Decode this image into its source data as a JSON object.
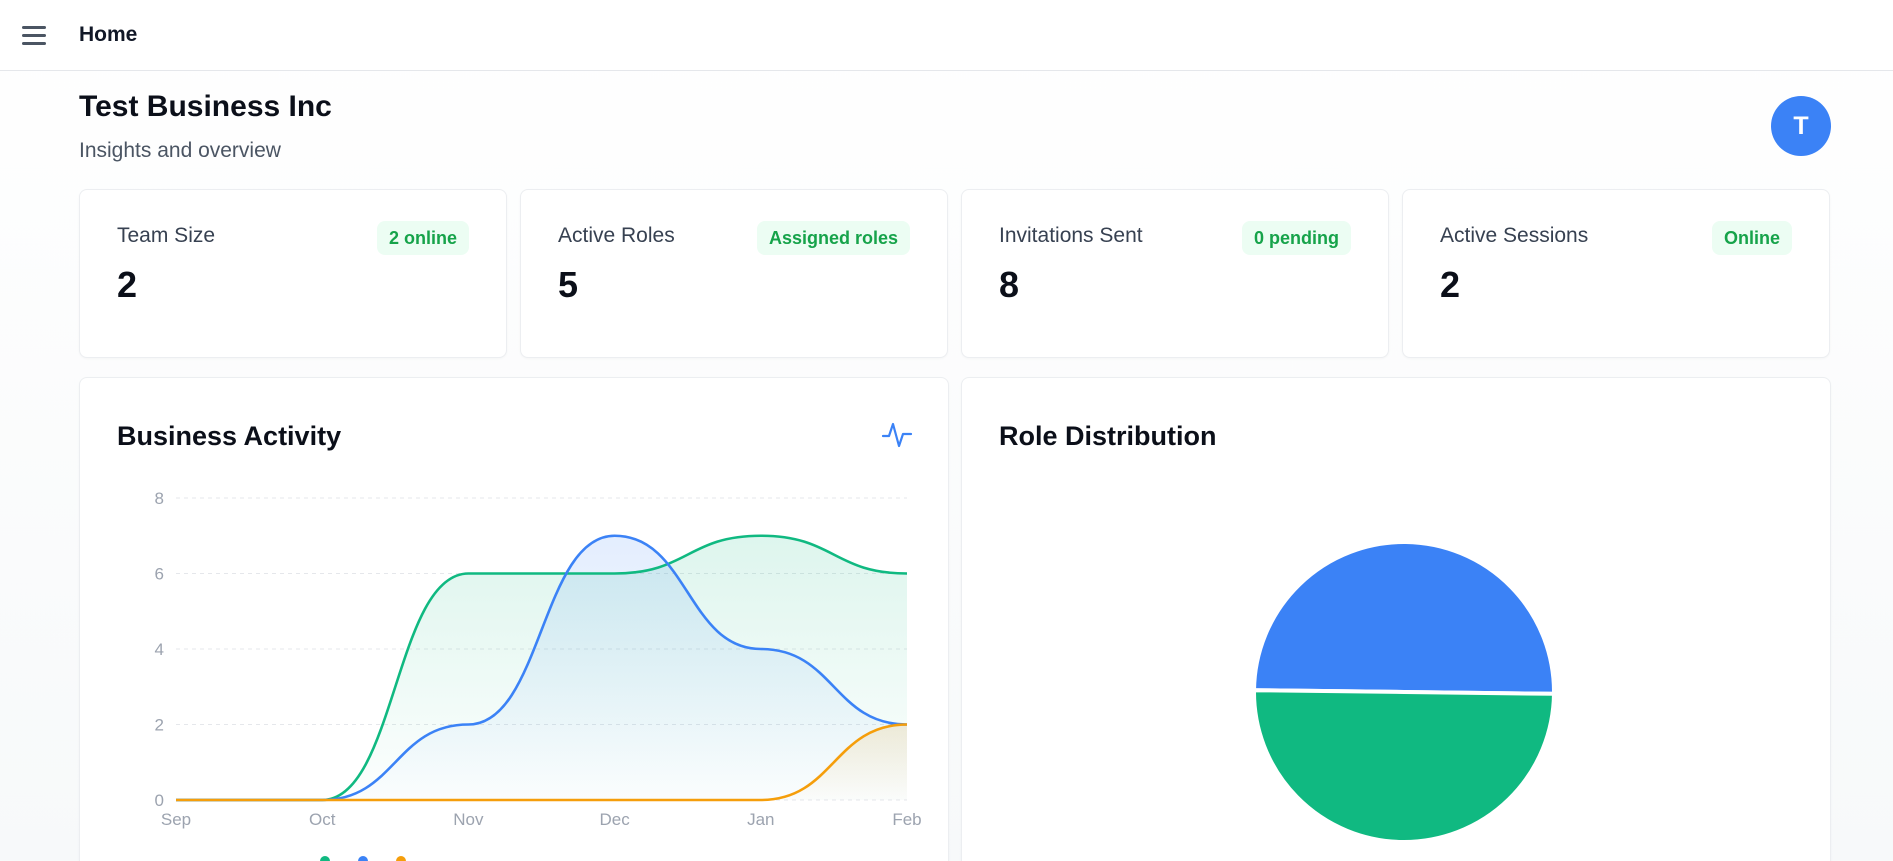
{
  "header": {
    "title": "Home"
  },
  "page": {
    "title": "Test Business Inc",
    "subtitle": "Insights and overview"
  },
  "user": {
    "avatar_initial": "T"
  },
  "stats": [
    {
      "label": "Team Size",
      "value": "2",
      "badge": "2 online"
    },
    {
      "label": "Active Roles",
      "value": "5",
      "badge": "Assigned roles"
    },
    {
      "label": "Invitations Sent",
      "value": "8",
      "badge": "0 pending"
    },
    {
      "label": "Active Sessions",
      "value": "2",
      "badge": "Online"
    }
  ],
  "activity": {
    "title": "Business Activity",
    "icon": "activity-icon"
  },
  "roles": {
    "title": "Role Distribution"
  },
  "chart_data": [
    {
      "type": "area",
      "title": "Business Activity",
      "categories": [
        "Sep",
        "Oct",
        "Nov",
        "Dec",
        "Jan",
        "Feb"
      ],
      "ylim": [
        0,
        8
      ],
      "yticks": [
        "0",
        "2",
        "4",
        "6",
        "8"
      ],
      "grid": true,
      "series": [
        {
          "values": [
            0,
            0,
            6,
            6,
            7,
            6
          ],
          "color": "#10b981"
        },
        {
          "values": [
            0,
            0,
            2,
            7,
            4,
            2
          ],
          "color": "#3b82f6"
        },
        {
          "values": [
            0,
            0,
            0,
            0,
            0,
            2
          ],
          "color": "#f59e0b"
        }
      ]
    },
    {
      "type": "pie",
      "title": "Role Distribution",
      "values": [
        50,
        50
      ],
      "colors": [
        "#3b82f6",
        "#10b981"
      ]
    }
  ]
}
